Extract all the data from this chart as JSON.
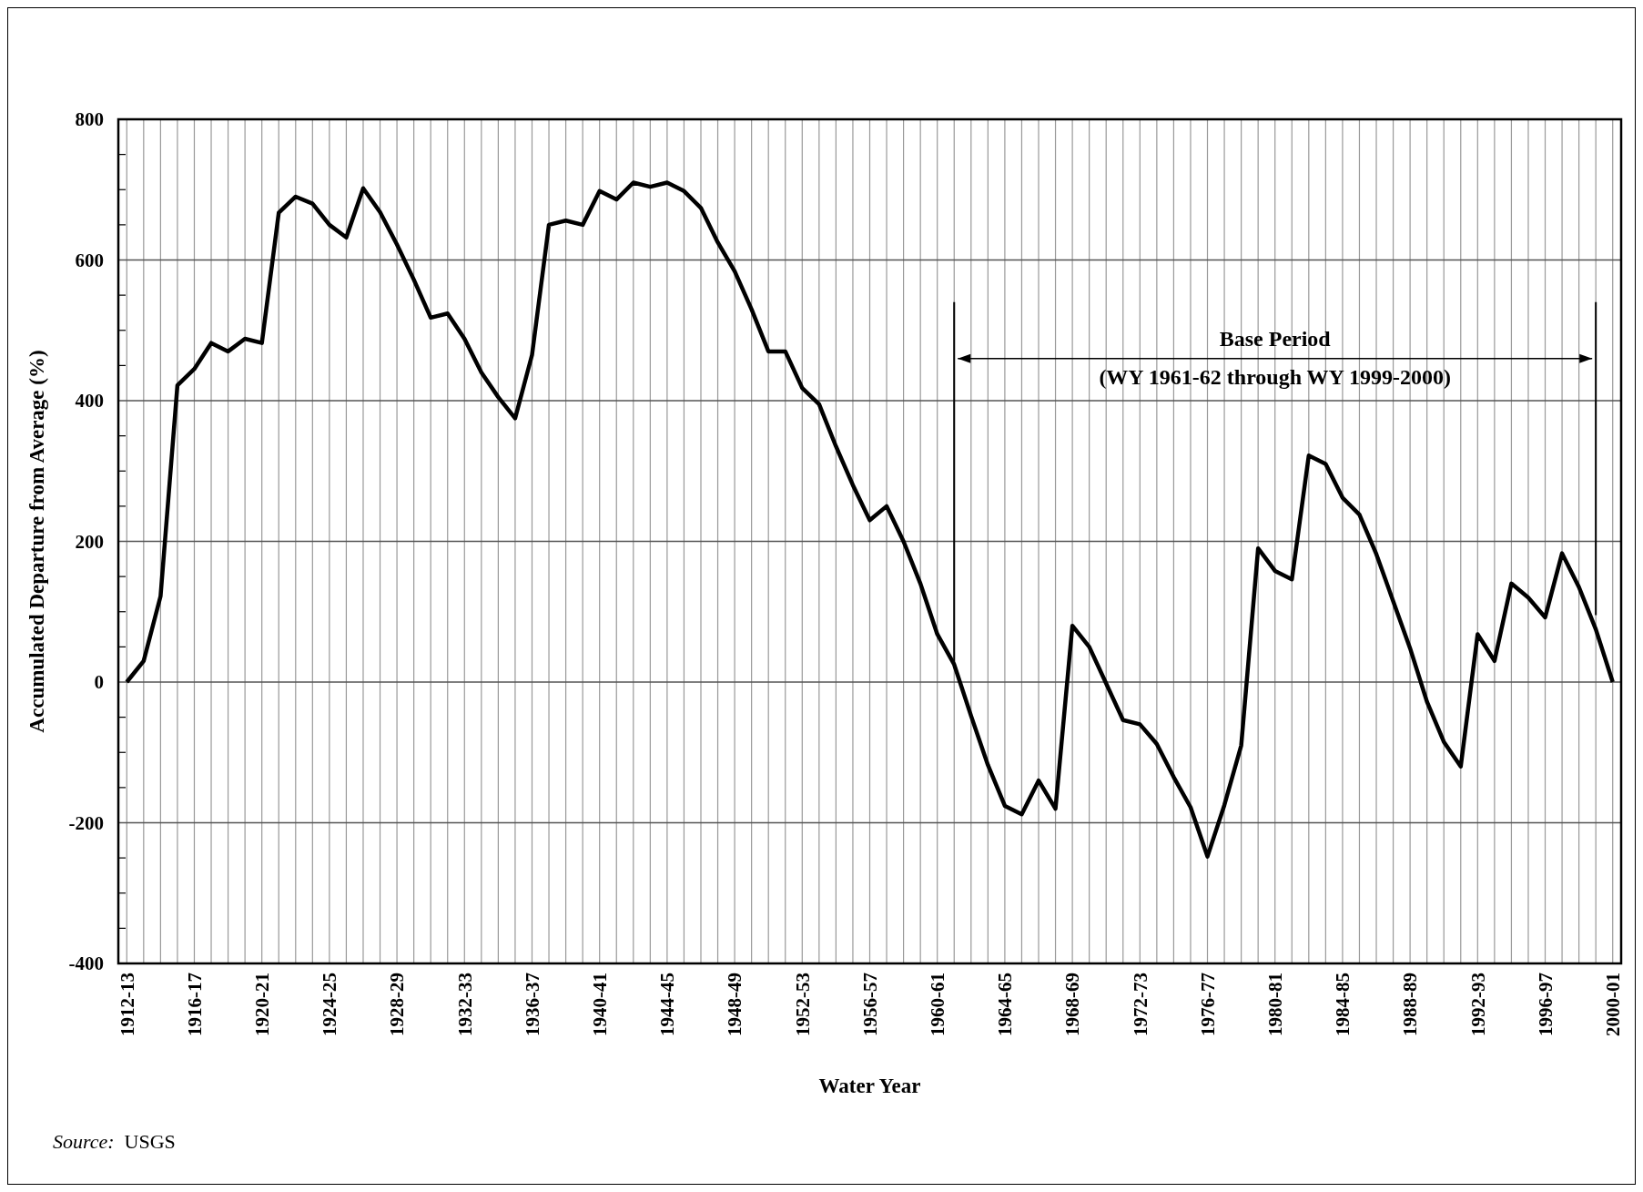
{
  "chart_data": {
    "type": "line",
    "xlabel": "Water Year",
    "ylabel": "Accumulated Departure from Average (%)",
    "categories": [
      "1912-13",
      null,
      null,
      null,
      "1916-17",
      null,
      null,
      null,
      "1920-21",
      null,
      null,
      null,
      "1924-25",
      null,
      null,
      null,
      "1928-29",
      null,
      null,
      null,
      "1932-33",
      null,
      null,
      null,
      "1936-37",
      null,
      null,
      null,
      "1940-41",
      null,
      null,
      null,
      "1944-45",
      null,
      null,
      null,
      "1948-49",
      null,
      null,
      null,
      "1952-53",
      null,
      null,
      null,
      "1956-57",
      null,
      null,
      null,
      "1960-61",
      null,
      null,
      null,
      "1964-65",
      null,
      null,
      null,
      "1968-69",
      null,
      null,
      null,
      "1972-73",
      null,
      null,
      null,
      "1976-77",
      null,
      null,
      null,
      "1980-81",
      null,
      null,
      null,
      "1984-85",
      null,
      null,
      null,
      "1988-89",
      null,
      null,
      null,
      "1992-93",
      null,
      null,
      null,
      "1996-97",
      null,
      null,
      null,
      "2000-01"
    ],
    "series": [
      {
        "color": "#000000",
        "values": [
          0,
          30,
          122,
          422,
          445,
          482,
          470,
          488,
          482,
          667,
          690,
          680,
          650,
          632,
          702,
          668,
          622,
          572,
          518,
          524,
          488,
          440,
          405,
          375,
          465,
          650,
          656,
          650,
          698,
          686,
          710,
          704,
          710,
          698,
          674,
          625,
          584,
          530,
          470,
          470,
          418,
          395,
          335,
          280,
          230,
          250,
          200,
          140,
          68,
          25,
          -48,
          -118,
          -176,
          -188,
          -140,
          -180,
          80,
          50,
          -2,
          -54,
          -60,
          -88,
          -135,
          -178,
          -248,
          -175,
          -90,
          190,
          158,
          146,
          322,
          310,
          262,
          238,
          182,
          115,
          48,
          -28,
          -85,
          -120,
          68,
          30,
          140,
          120,
          92,
          183,
          135,
          75,
          0
        ]
      }
    ],
    "ylim": [
      -400,
      800
    ],
    "yticks": [
      -400,
      {
        "value": -350,
        "label": null
      },
      {
        "value": -300,
        "label": null
      },
      {
        "value": -250,
        "label": null
      },
      -200,
      {
        "value": -150,
        "label": null
      },
      {
        "value": -100,
        "label": null
      },
      {
        "value": -50,
        "label": null
      },
      0,
      {
        "value": 50,
        "label": null
      },
      {
        "value": 100,
        "label": null
      },
      {
        "value": 150,
        "label": null
      },
      200,
      {
        "value": 250,
        "label": null
      },
      {
        "value": 300,
        "label": null
      },
      {
        "value": 350,
        "label": null
      },
      400,
      {
        "value": 450,
        "label": null
      },
      {
        "value": 500,
        "label": null
      },
      {
        "value": 550,
        "label": null
      },
      600,
      {
        "value": 650,
        "label": null
      },
      {
        "value": 700,
        "label": null
      },
      {
        "value": 750,
        "label": null
      },
      800
    ],
    "grid": true,
    "annotations": [
      "Base Period",
      "(WY 1961-62 through WY 1999-2000)",
      "Source:  USGS"
    ]
  }
}
